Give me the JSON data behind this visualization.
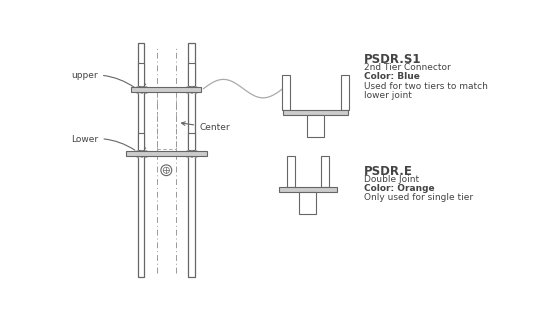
{
  "bg_color": "#ffffff",
  "line_color": "#666666",
  "dash_color": "#999999",
  "light_gray": "#aaaaaa",
  "text_color": "#444444",
  "title_text": "PSDR.S1",
  "title2_text": "PSDR.E",
  "s1_lines": [
    "2nd Tier Connector",
    "Color: Blue",
    "Used for two tiers to match",
    "lower joint"
  ],
  "e_lines": [
    "Double Joint",
    "Color: Orange",
    "Only used for single tier"
  ],
  "label_upper": "upper",
  "label_lower": "Lower",
  "label_center": "Center",
  "pole_lw": 1.0,
  "bar_fill": "#cccccc",
  "prong_fill": "#e8e8e8",
  "stem_fill": "#e8e8e8"
}
